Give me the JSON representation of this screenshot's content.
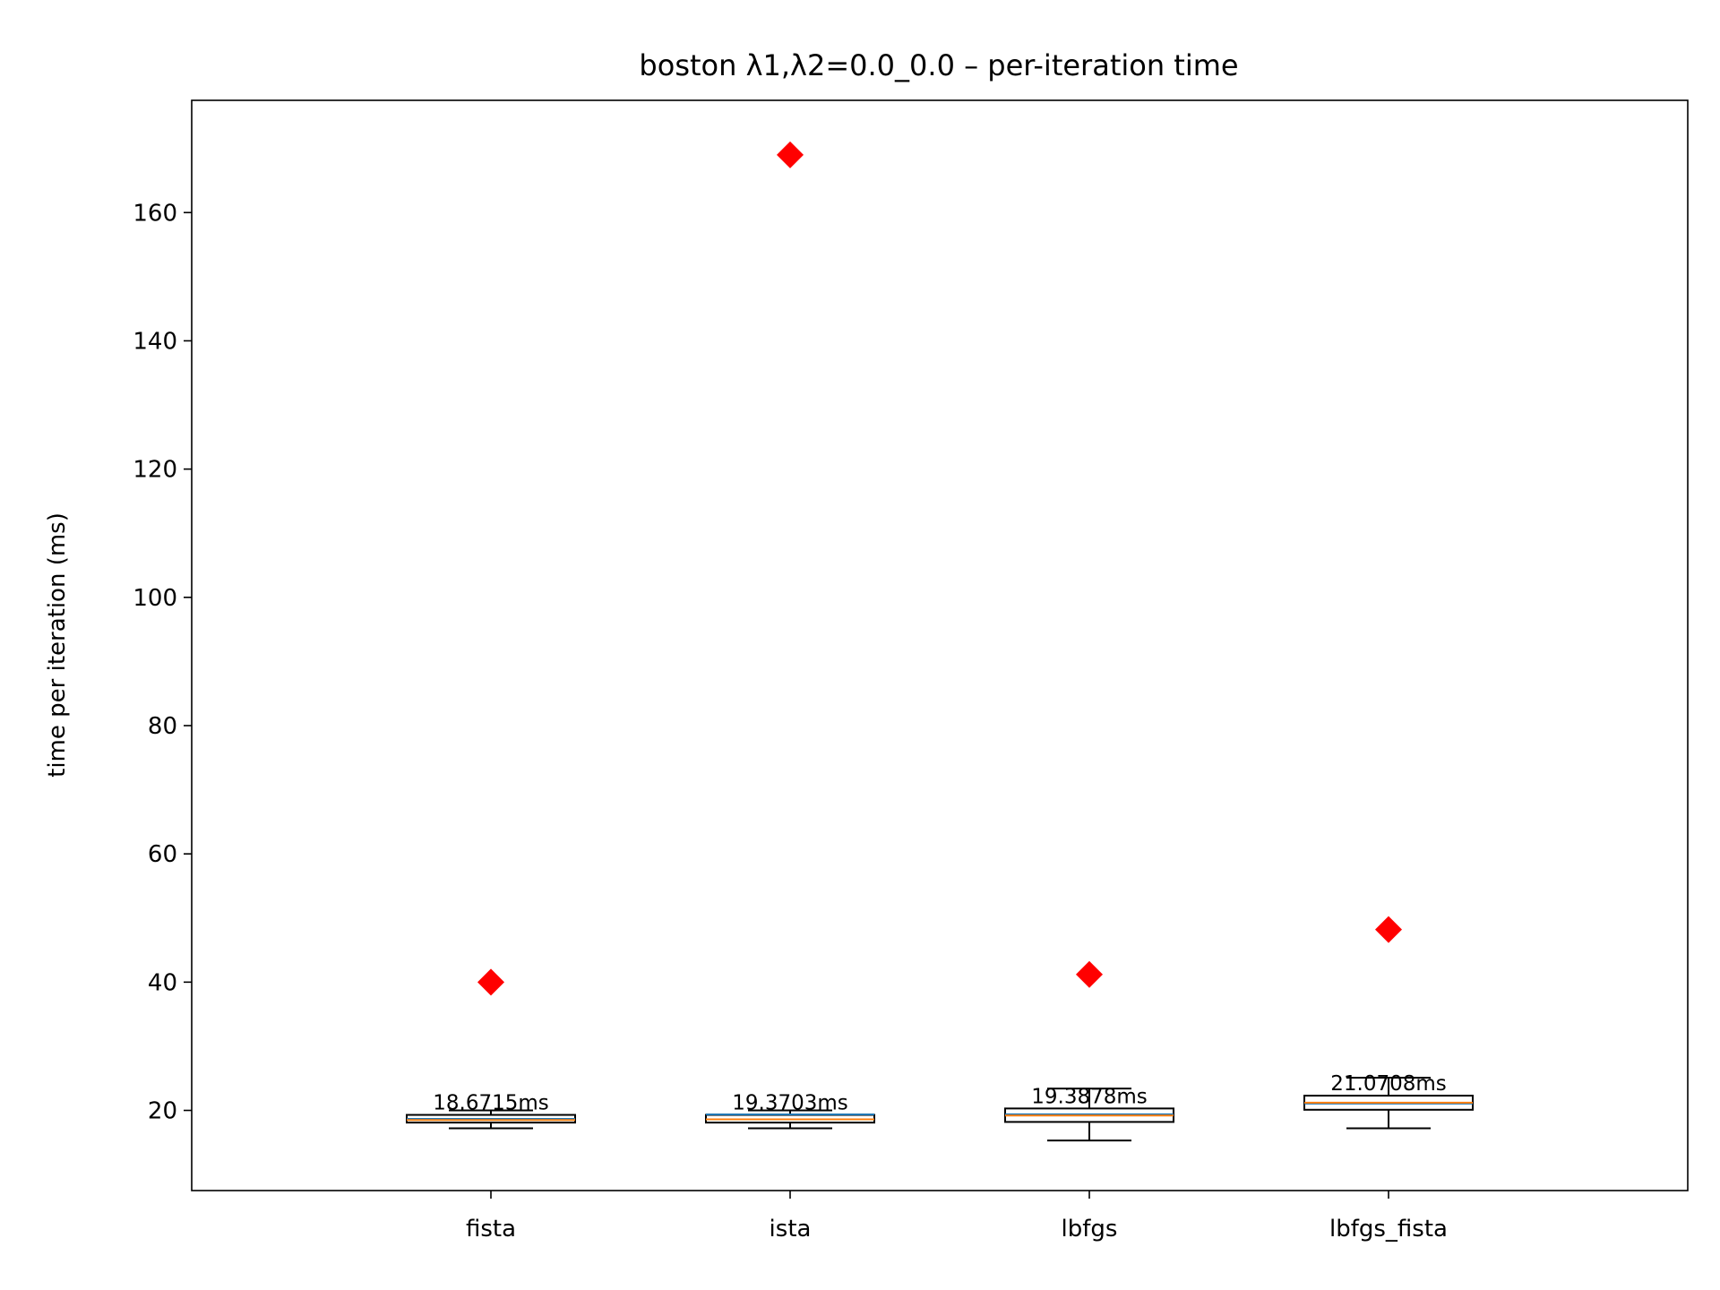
{
  "chart_data": {
    "type": "box",
    "title": "boston   λ1,λ2=0.0_0.0  –  per-iteration time",
    "xlabel": "",
    "ylabel": "time per iteration (ms)",
    "ylim": [
      7.5,
      177.5
    ],
    "yticks": [
      20,
      40,
      60,
      80,
      100,
      120,
      140,
      160
    ],
    "grid": false,
    "categories": [
      "fista",
      "ista",
      "lbfgs",
      "lbfgs_fista"
    ],
    "boxes": [
      {
        "whisker_low": 17.2,
        "q1": 18.1,
        "median": 18.5,
        "q3": 19.3,
        "whisker_high": 20.0,
        "outlier": 40.0,
        "label": "18.6715ms"
      },
      {
        "whisker_low": 17.2,
        "q1": 18.1,
        "median": 18.6,
        "q3": 19.3,
        "whisker_high": 20.0,
        "outlier": 169.0,
        "label": "19.3703ms"
      },
      {
        "whisker_low": 15.3,
        "q1": 18.2,
        "median": 19.2,
        "q3": 20.3,
        "whisker_high": 23.4,
        "outlier": 41.2,
        "label": "19.3878ms"
      },
      {
        "whisker_low": 17.2,
        "q1": 20.1,
        "median": 21.2,
        "q3": 22.3,
        "whisker_high": 25.1,
        "outlier": 48.2,
        "label": "21.0708ms"
      }
    ],
    "colors": {
      "box_edge": "#000000",
      "median_line": "#ff7f0e",
      "mean_line": "#1f77b4",
      "outlier": "#ff0000"
    }
  }
}
